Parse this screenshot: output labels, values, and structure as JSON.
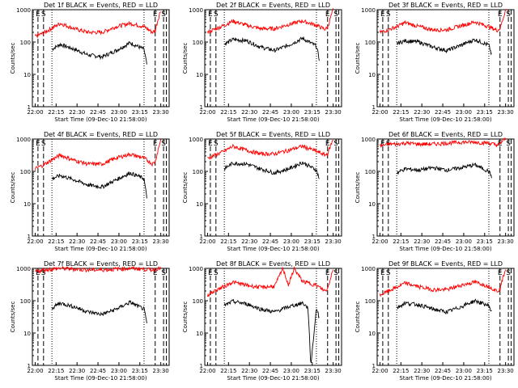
{
  "colors": {
    "events": "#000000",
    "lld": "#ff0000",
    "axis": "#000000",
    "background": "#ffffff"
  },
  "chart_data": [
    {
      "type": "line",
      "title": "Det 1f BLACK = Events, RED = LLD",
      "xlabel": "Start Time (09-Dec-10 21:58:00)",
      "ylabel": "Counts/sec",
      "yscale": "log",
      "ylim": [
        1,
        1000
      ],
      "yticks": [
        "1",
        "10",
        "100",
        "1000"
      ],
      "xticks": [
        "22:00",
        "22:15",
        "22:30",
        "22:45",
        "23:00",
        "23:15",
        "23:30"
      ],
      "x_unit": "minutes from 21:58:00",
      "xlim": [
        0,
        98
      ],
      "markers": [
        {
          "label": "E",
          "minute": 4
        },
        {
          "label": "S",
          "minute": 8
        },
        {
          "label": "E",
          "minute": 88
        },
        {
          "label": "S",
          "minute": 94
        }
      ],
      "dashed_minutes": [
        4,
        8,
        88,
        94,
        96
      ],
      "dotted_minutes": [
        14,
        80
      ],
      "series": [
        {
          "name": "Events",
          "color": "#000000",
          "x": [
            14,
            20,
            30,
            40,
            50,
            60,
            70,
            80,
            82
          ],
          "y": [
            60,
            85,
            60,
            40,
            35,
            55,
            95,
            60,
            20
          ]
        },
        {
          "name": "LLD",
          "color": "#ff0000",
          "x": [
            2,
            8,
            14,
            20,
            30,
            40,
            50,
            60,
            70,
            80,
            86,
            88,
            90,
            92
          ],
          "y": [
            150,
            190,
            270,
            380,
            260,
            200,
            200,
            300,
            380,
            300,
            200,
            230,
            500,
            1000
          ]
        }
      ]
    },
    {
      "type": "line",
      "title": "Det 2f BLACK = Events, RED = LLD",
      "xlabel": "Start Time (09-Dec-10 21:58:00)",
      "ylabel": "Counts/sec",
      "yscale": "log",
      "ylim": [
        1,
        1000
      ],
      "yticks": [
        "1",
        "10",
        "100",
        "1000"
      ],
      "xticks": [
        "22:00",
        "22:15",
        "22:30",
        "22:45",
        "23:00",
        "23:15",
        "23:30"
      ],
      "x_unit": "minutes from 21:58:00",
      "xlim": [
        0,
        98
      ],
      "markers": [
        {
          "label": "E",
          "minute": 4
        },
        {
          "label": "S",
          "minute": 8
        },
        {
          "label": "E",
          "minute": 88
        },
        {
          "label": "S",
          "minute": 94
        }
      ],
      "dashed_minutes": [
        4,
        8,
        88,
        94,
        96
      ],
      "dotted_minutes": [
        14,
        80
      ],
      "series": [
        {
          "name": "Events",
          "color": "#000000",
          "x": [
            14,
            20,
            30,
            40,
            50,
            60,
            70,
            80,
            82
          ],
          "y": [
            85,
            120,
            110,
            70,
            55,
            80,
            130,
            75,
            30
          ]
        },
        {
          "name": "LLD",
          "color": "#ff0000",
          "x": [
            2,
            8,
            14,
            20,
            30,
            40,
            50,
            60,
            70,
            80,
            86,
            88,
            90,
            92
          ],
          "y": [
            200,
            260,
            330,
            450,
            330,
            260,
            260,
            350,
            450,
            330,
            250,
            280,
            550,
            1000
          ]
        }
      ]
    },
    {
      "type": "line",
      "title": "Det 3f BLACK = Events, RED = LLD",
      "xlabel": "Start Time (09-Dec-10 21:58:00)",
      "ylabel": "Counts/sec",
      "yscale": "log",
      "ylim": [
        1,
        1000
      ],
      "yticks": [
        "1",
        "10",
        "100",
        "1000"
      ],
      "xticks": [
        "22:00",
        "22:15",
        "22:30",
        "22:45",
        "23:00",
        "23:15",
        "23:30"
      ],
      "x_unit": "minutes from 21:58:00",
      "xlim": [
        0,
        98
      ],
      "markers": [
        {
          "label": "E",
          "minute": 4
        },
        {
          "label": "S",
          "minute": 8
        },
        {
          "label": "E",
          "minute": 88
        },
        {
          "label": "S",
          "minute": 94
        }
      ],
      "dashed_minutes": [
        4,
        8,
        88,
        94,
        96
      ],
      "dotted_minutes": [
        14,
        80
      ],
      "series": [
        {
          "name": "Events",
          "color": "#000000",
          "x": [
            14,
            20,
            30,
            40,
            50,
            60,
            70,
            80,
            82
          ],
          "y": [
            90,
            110,
            100,
            70,
            55,
            80,
            120,
            80,
            40
          ]
        },
        {
          "name": "LLD",
          "color": "#ff0000",
          "x": [
            2,
            8,
            14,
            20,
            30,
            40,
            50,
            60,
            70,
            80,
            86,
            88,
            90,
            92
          ],
          "y": [
            200,
            240,
            300,
            400,
            300,
            240,
            240,
            320,
            420,
            300,
            230,
            260,
            500,
            1000
          ]
        }
      ]
    },
    {
      "type": "line",
      "title": "Det 4f BLACK = Events, RED = LLD",
      "xlabel": "Start Time (09-Dec-10 21:58:00)",
      "ylabel": "Counts/sec",
      "yscale": "log",
      "ylim": [
        1,
        1000
      ],
      "yticks": [
        "1",
        "10",
        "100",
        "1000"
      ],
      "xticks": [
        "22:00",
        "22:15",
        "22:30",
        "22:45",
        "23:00",
        "23:15",
        "23:30"
      ],
      "x_unit": "minutes from 21:58:00",
      "xlim": [
        0,
        98
      ],
      "markers": [
        {
          "label": "E",
          "minute": 4
        },
        {
          "label": "S",
          "minute": 8
        },
        {
          "label": "E",
          "minute": 88
        },
        {
          "label": "S",
          "minute": 94
        }
      ],
      "dashed_minutes": [
        4,
        8,
        88,
        94,
        96
      ],
      "dotted_minutes": [
        14,
        80
      ],
      "series": [
        {
          "name": "Events",
          "color": "#000000",
          "x": [
            14,
            20,
            30,
            40,
            50,
            60,
            70,
            80,
            82
          ],
          "y": [
            60,
            75,
            55,
            38,
            33,
            55,
            90,
            60,
            15
          ]
        },
        {
          "name": "LLD",
          "color": "#ff0000",
          "x": [
            2,
            8,
            14,
            20,
            30,
            40,
            50,
            60,
            70,
            80,
            86,
            88,
            90,
            92
          ],
          "y": [
            120,
            160,
            230,
            320,
            220,
            170,
            170,
            260,
            340,
            260,
            170,
            200,
            450,
            1000
          ]
        }
      ]
    },
    {
      "type": "line",
      "title": "Det 5f BLACK = Events, RED = LLD",
      "xlabel": "Start Time (09-Dec-10 21:58:00)",
      "ylabel": "Counts/sec",
      "yscale": "log",
      "ylim": [
        1,
        1000
      ],
      "yticks": [
        "1",
        "10",
        "100",
        "1000"
      ],
      "xticks": [
        "22:00",
        "22:15",
        "22:30",
        "22:45",
        "23:00",
        "23:15",
        "23:30"
      ],
      "x_unit": "minutes from 21:58:00",
      "xlim": [
        0,
        98
      ],
      "markers": [
        {
          "label": "E",
          "minute": 4
        },
        {
          "label": "S",
          "minute": 8
        },
        {
          "label": "E",
          "minute": 88
        },
        {
          "label": "S",
          "minute": 94
        }
      ],
      "dashed_minutes": [
        4,
        8,
        88,
        94,
        96
      ],
      "dotted_minutes": [
        14,
        80
      ],
      "series": [
        {
          "name": "Events",
          "color": "#000000",
          "x": [
            14,
            20,
            30,
            40,
            50,
            60,
            70,
            80,
            82
          ],
          "y": [
            120,
            180,
            170,
            120,
            90,
            120,
            190,
            110,
            60
          ]
        },
        {
          "name": "LLD",
          "color": "#ff0000",
          "x": [
            2,
            8,
            14,
            20,
            30,
            40,
            50,
            60,
            70,
            80,
            86,
            88,
            90,
            92
          ],
          "y": [
            250,
            330,
            420,
            600,
            450,
            350,
            350,
            450,
            600,
            420,
            320,
            350,
            600,
            1000
          ]
        }
      ]
    },
    {
      "type": "line",
      "title": "Det 6f BLACK = Events, RED = LLD",
      "xlabel": "Start Time (09-Dec-10 21:58:00)",
      "ylabel": "Counts/sec",
      "yscale": "log",
      "ylim": [
        1,
        1000
      ],
      "yticks": [
        "1",
        "10",
        "100",
        "1000"
      ],
      "xticks": [
        "22:00",
        "22:15",
        "22:30",
        "22:45",
        "23:00",
        "23:15",
        "23:30"
      ],
      "x_unit": "minutes from 21:58:00",
      "xlim": [
        0,
        98
      ],
      "markers": [
        {
          "label": "E",
          "minute": 4
        },
        {
          "label": "S",
          "minute": 8
        },
        {
          "label": "E",
          "minute": 88
        },
        {
          "label": "S",
          "minute": 94
        }
      ],
      "dashed_minutes": [
        4,
        8,
        88,
        94,
        96
      ],
      "dotted_minutes": [
        14,
        80
      ],
      "series": [
        {
          "name": "Events",
          "color": "#000000",
          "x": [
            14,
            20,
            30,
            40,
            50,
            60,
            70,
            80,
            82
          ],
          "y": [
            90,
            120,
            110,
            130,
            110,
            130,
            160,
            100,
            70
          ]
        },
        {
          "name": "LLD",
          "color": "#ff0000",
          "x": [
            2,
            8,
            14,
            20,
            30,
            40,
            50,
            60,
            70,
            80,
            86,
            88,
            90,
            92
          ],
          "y": [
            600,
            700,
            700,
            750,
            700,
            700,
            750,
            800,
            800,
            750,
            650,
            700,
            900,
            1000
          ]
        }
      ]
    },
    {
      "type": "line",
      "title": "Det 7f BLACK = Events, RED = LLD",
      "xlabel": "Start Time (09-Dec-10 21:58:00)",
      "ylabel": "Counts/sec",
      "yscale": "log",
      "ylim": [
        1,
        1000
      ],
      "yticks": [
        "1",
        "10",
        "100",
        "1000"
      ],
      "xticks": [
        "22:00",
        "22:15",
        "22:30",
        "22:45",
        "23:00",
        "23:15",
        "23:30"
      ],
      "x_unit": "minutes from 21:58:00",
      "xlim": [
        0,
        98
      ],
      "markers": [
        {
          "label": "E",
          "minute": 4
        },
        {
          "label": "S",
          "minute": 8
        },
        {
          "label": "E",
          "minute": 88
        },
        {
          "label": "S",
          "minute": 94
        }
      ],
      "dashed_minutes": [
        4,
        8,
        88,
        94,
        96
      ],
      "dotted_minutes": [
        14,
        80
      ],
      "series": [
        {
          "name": "Events",
          "color": "#000000",
          "x": [
            14,
            20,
            30,
            40,
            50,
            60,
            70,
            80,
            82
          ],
          "y": [
            60,
            85,
            65,
            45,
            38,
            55,
            90,
            55,
            20
          ]
        },
        {
          "name": "LLD",
          "color": "#ff0000",
          "x": [
            2,
            8,
            14,
            20,
            30,
            40,
            50,
            60,
            70,
            80,
            86,
            88,
            90,
            92
          ],
          "y": [
            800,
            900,
            950,
            1000,
            950,
            900,
            900,
            950,
            1000,
            950,
            900,
            950,
            1000,
            1000
          ]
        }
      ]
    },
    {
      "type": "line",
      "title": "Det 8f BLACK = Events, RED = LLD",
      "xlabel": "Start Time (09-Dec-10 21:58:00)",
      "ylabel": "Counts/sec",
      "yscale": "log",
      "ylim": [
        1,
        1000
      ],
      "yticks": [
        "1",
        "10",
        "100",
        "1000"
      ],
      "xticks": [
        "22:00",
        "22:15",
        "22:30",
        "22:45",
        "23:00",
        "23:15",
        "23:30"
      ],
      "x_unit": "minutes from 21:58:00",
      "xlim": [
        0,
        98
      ],
      "markers": [
        {
          "label": "E",
          "minute": 4
        },
        {
          "label": "S",
          "minute": 8
        },
        {
          "label": "E",
          "minute": 88
        },
        {
          "label": "S",
          "minute": 94
        }
      ],
      "dashed_minutes": [
        4,
        8,
        88,
        94,
        96
      ],
      "dotted_minutes": [
        14,
        80
      ],
      "series": [
        {
          "name": "Events",
          "color": "#000000",
          "x": [
            14,
            20,
            30,
            40,
            50,
            60,
            70,
            74,
            76,
            80,
            82
          ],
          "y": [
            70,
            95,
            80,
            55,
            45,
            65,
            85,
            60,
            1,
            60,
            30
          ]
        },
        {
          "name": "LLD",
          "color": "#ff0000",
          "x": [
            2,
            8,
            14,
            20,
            30,
            40,
            50,
            56,
            60,
            64,
            70,
            80,
            86,
            88,
            90,
            92
          ],
          "y": [
            150,
            210,
            280,
            380,
            300,
            260,
            280,
            1000,
            300,
            1000,
            400,
            300,
            200,
            230,
            500,
            1000
          ]
        }
      ]
    },
    {
      "type": "line",
      "title": "Det 9f BLACK = Events, RED = LLD",
      "xlabel": "Start Time (09-Dec-10 21:58:00)",
      "ylabel": "Counts/sec",
      "yscale": "log",
      "ylim": [
        1,
        1000
      ],
      "yticks": [
        "1",
        "10",
        "100",
        "1000"
      ],
      "xticks": [
        "22:00",
        "22:15",
        "22:30",
        "22:45",
        "23:00",
        "23:15",
        "23:30"
      ],
      "x_unit": "minutes from 21:58:00",
      "xlim": [
        0,
        98
      ],
      "markers": [
        {
          "label": "E",
          "minute": 4
        },
        {
          "label": "S",
          "minute": 8
        },
        {
          "label": "E",
          "minute": 88
        },
        {
          "label": "S",
          "minute": 94
        }
      ],
      "dashed_minutes": [
        4,
        8,
        88,
        94,
        96
      ],
      "dotted_minutes": [
        14,
        80
      ],
      "series": [
        {
          "name": "Events",
          "color": "#000000",
          "x": [
            14,
            20,
            30,
            40,
            50,
            60,
            70,
            80,
            82
          ],
          "y": [
            60,
            85,
            75,
            55,
            45,
            65,
            100,
            70,
            45
          ]
        },
        {
          "name": "LLD",
          "color": "#ff0000",
          "x": [
            2,
            8,
            14,
            20,
            30,
            40,
            50,
            60,
            70,
            80,
            86,
            88,
            90,
            92
          ],
          "y": [
            150,
            200,
            260,
            350,
            270,
            220,
            220,
            300,
            380,
            280,
            200,
            230,
            500,
            1000
          ]
        }
      ]
    }
  ]
}
